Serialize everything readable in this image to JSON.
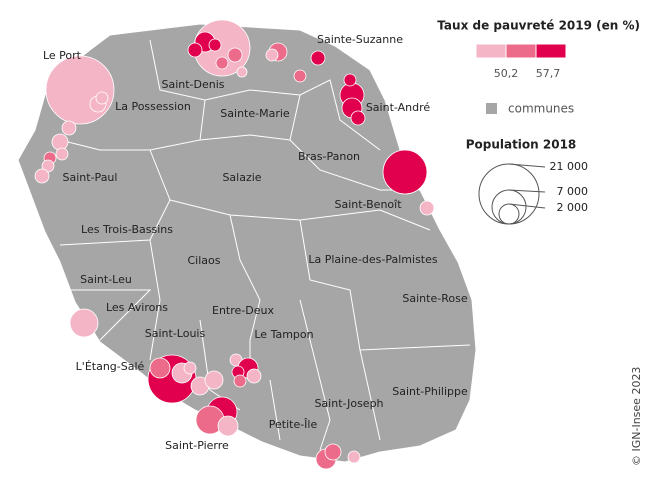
{
  "legend": {
    "title": "Taux de pauvreté 2019 (en %)",
    "breaks": [
      "50,2",
      "57,7"
    ],
    "communes": "communes",
    "size_title": "Population 2018",
    "sizes": [
      "21 000",
      "7 000",
      "2 000"
    ]
  },
  "labels": [
    "Le Port",
    "Saint-Denis",
    "Sainte-Suzanne",
    "La Possession",
    "Sainte-Marie",
    "Saint-André",
    "Bras-Panon",
    "Saint-Paul",
    "Salazie",
    "Saint-Benoît",
    "Les Trois-Bassins",
    "Cilaos",
    "La Plaine-des-Palmistes",
    "Saint-Leu",
    "Sainte-Rose",
    "Les Avirons",
    "Entre-Deux",
    "Saint-Louis",
    "Le Tampon",
    "L'Étang-Salé",
    "Saint-Philippe",
    "Saint-Joseph",
    "Petite-Île",
    "Saint-Pierre"
  ],
  "credit": "© IGN-Insee 2023"
}
